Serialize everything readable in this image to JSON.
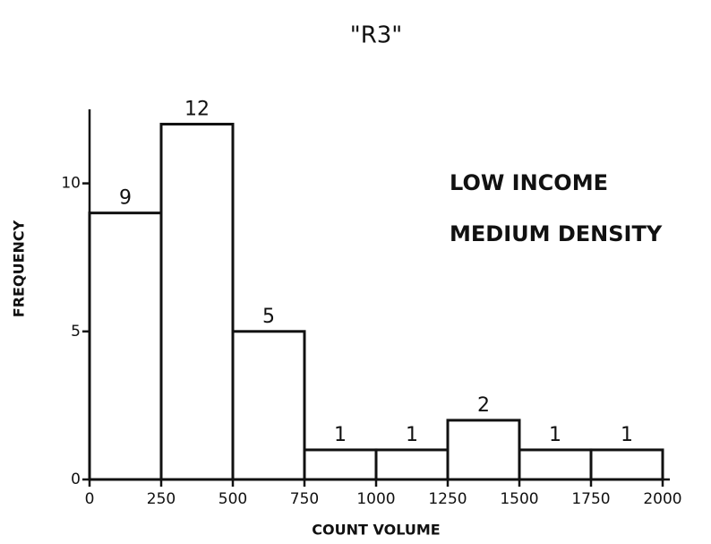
{
  "chart_data": {
    "type": "histogram",
    "title": "\"R3\"",
    "x_label": "COUNT VOLUME",
    "y_label": "FREQUENCY",
    "annotations": [
      "LOW INCOME",
      "MEDIUM DENSITY"
    ],
    "bins": [
      0,
      250,
      500,
      750,
      1000,
      1250,
      1500,
      1750,
      2000
    ],
    "values": [
      9,
      12,
      5,
      1,
      1,
      2,
      1,
      1
    ],
    "color": "#ffffff",
    "xlim": [
      0,
      2000
    ],
    "xticks": [
      0,
      250,
      500,
      750,
      1000,
      1250,
      1500,
      1750,
      2000
    ],
    "ylim": [
      0,
      12.5
    ],
    "yticks": [
      0,
      5,
      10
    ],
    "grid": false
  }
}
